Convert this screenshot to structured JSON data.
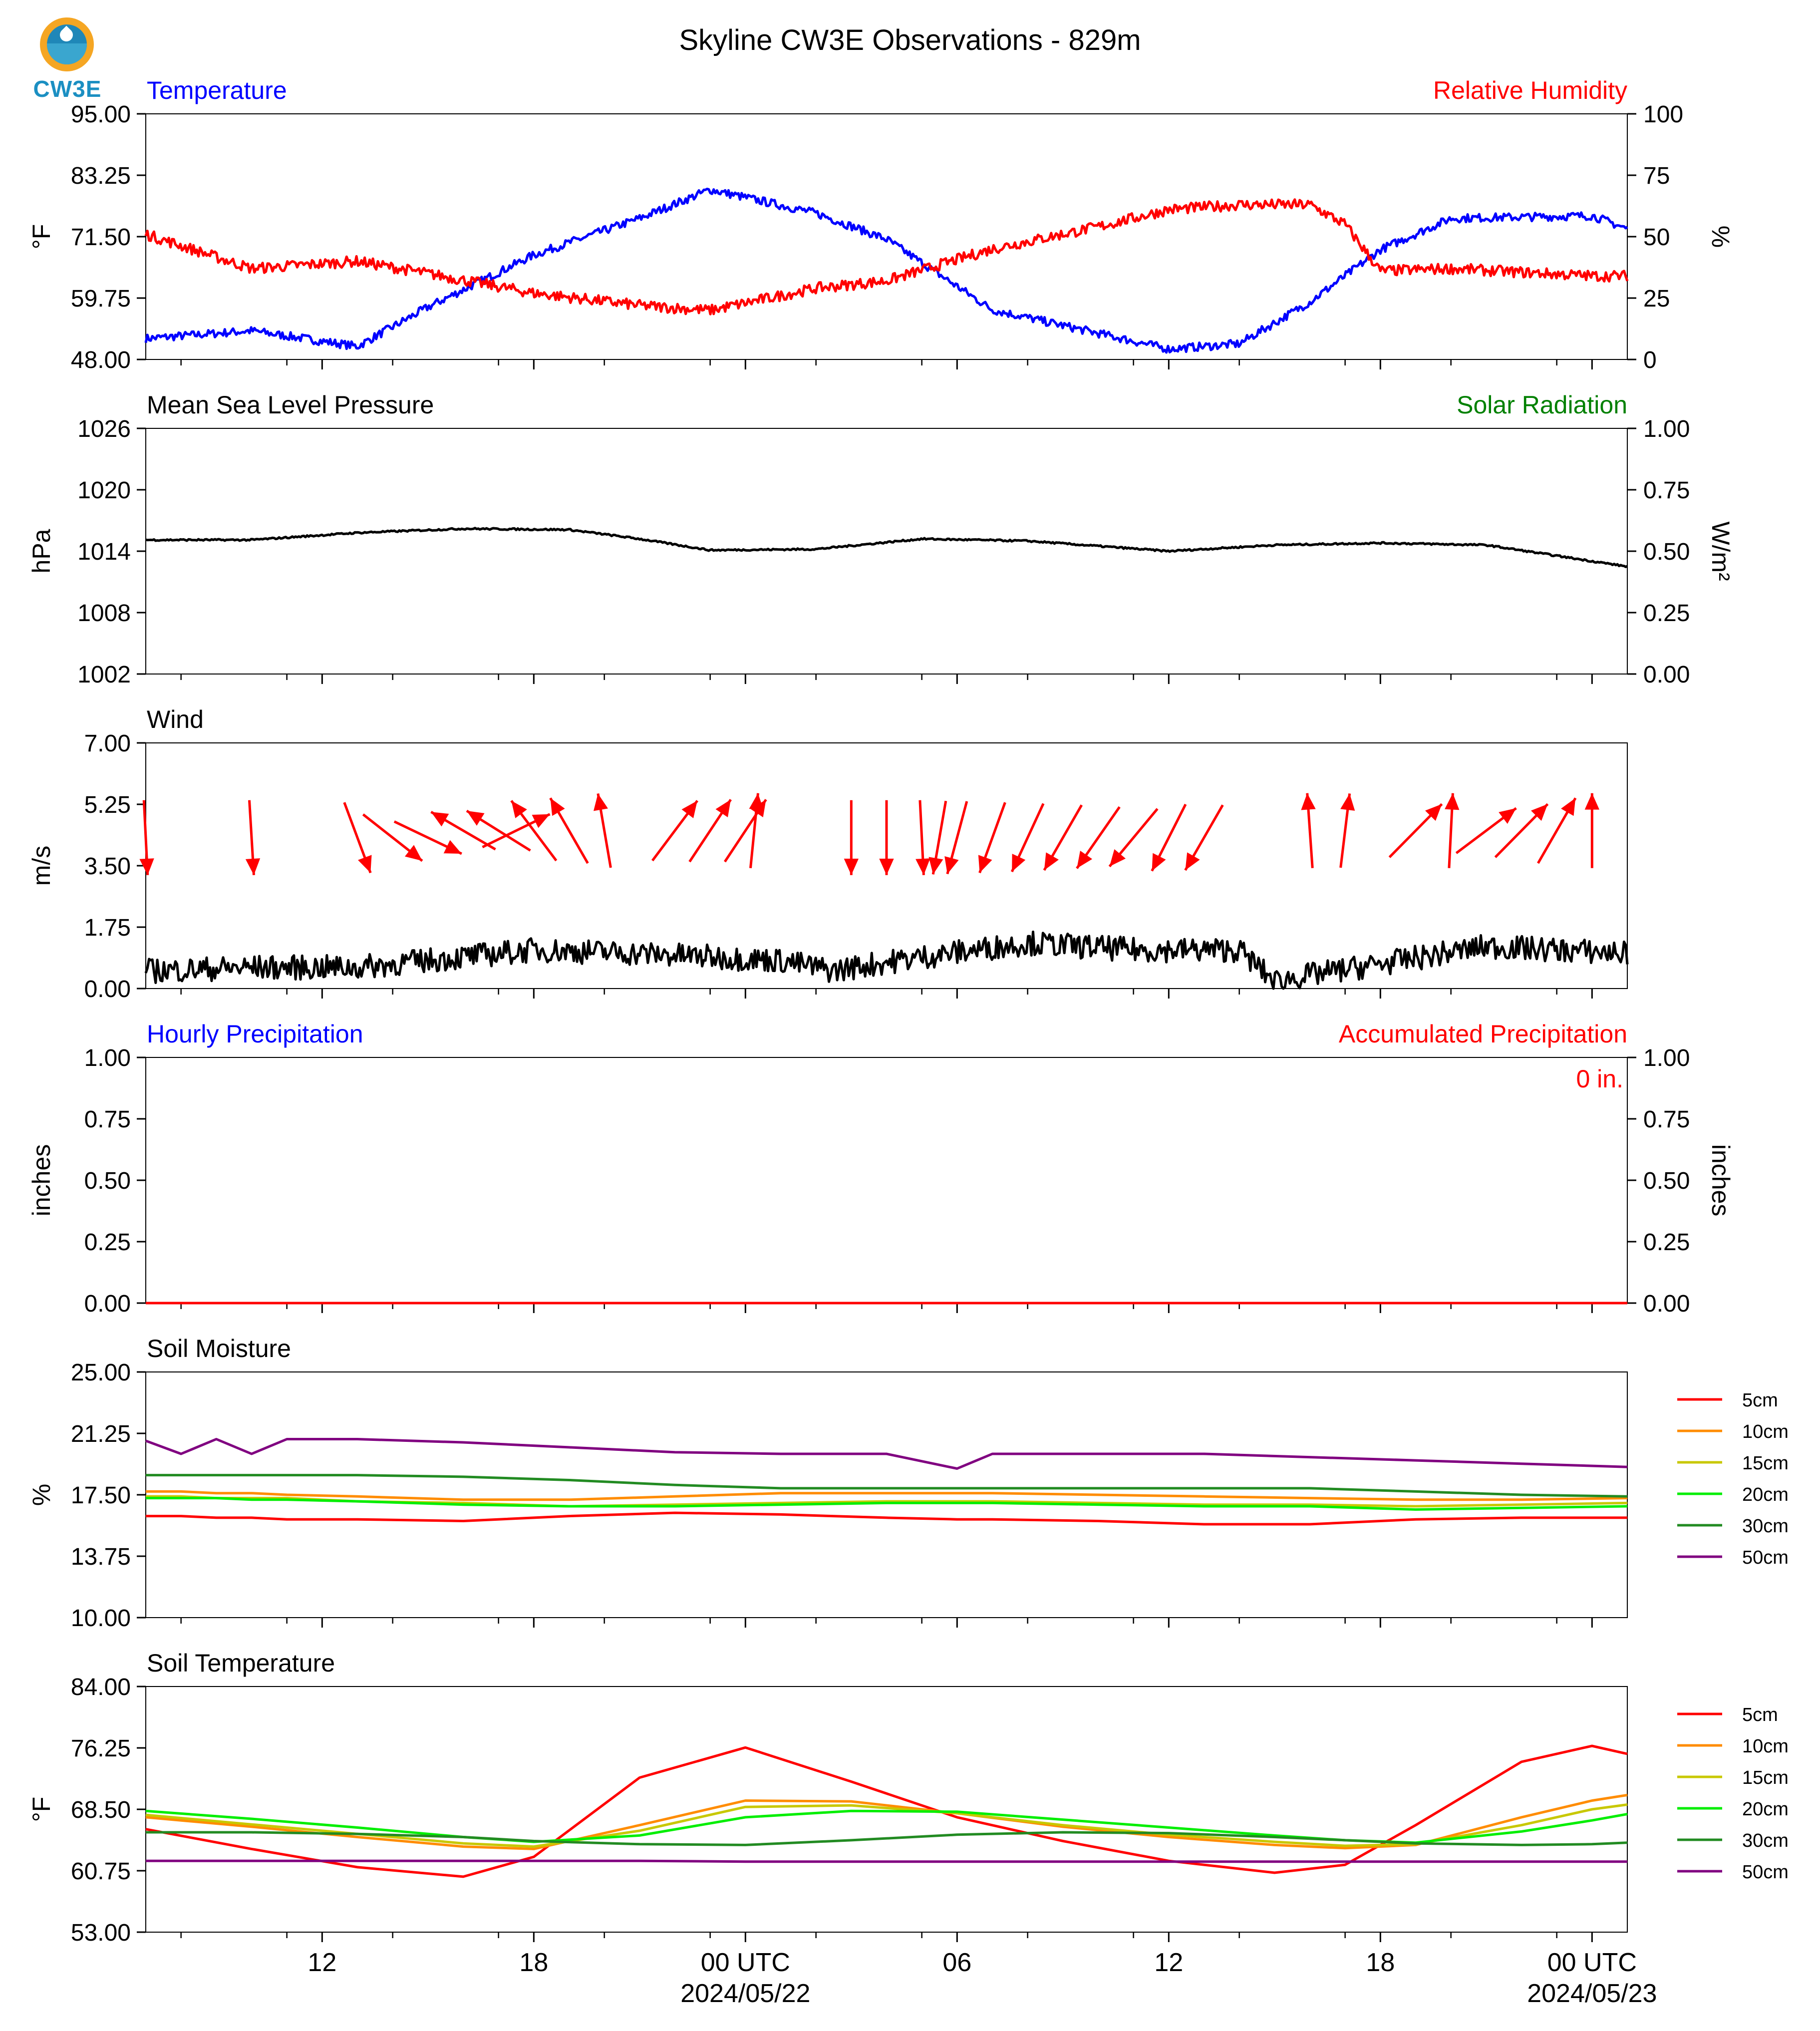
{
  "title": "Skyline CW3E Observations - 829m",
  "logo": {
    "text": "CW3E",
    "icon": "cw3e-logo-icon",
    "colors": {
      "ring": "#f5a623",
      "water": "#1f87b8"
    }
  },
  "colors": {
    "blue": "#0000ff",
    "red": "#ff0000",
    "green": "#008000",
    "black": "#000000"
  },
  "x_axis": {
    "tick_labels": [
      "12",
      "18",
      "00 UTC",
      "06",
      "12",
      "18",
      "00 UTC"
    ],
    "date_labels": [
      "2024/05/22",
      "2024/05/23"
    ]
  },
  "chart_data": [
    {
      "type": "line",
      "panel": "temperature-rh",
      "title_left": "Temperature",
      "title_right": "Relative Humidity",
      "ylabel_left": "°F",
      "ylabel_right": "%",
      "ylim_left": [
        48.0,
        95.0
      ],
      "ylim_right": [
        0,
        100
      ],
      "yticks_left": [
        "48.00",
        "59.75",
        "71.50",
        "83.25",
        "95.00"
      ],
      "yticks_right": [
        "0",
        "25",
        "50",
        "75",
        "100"
      ],
      "x": [
        "2024-05-21 07:00",
        "2024-05-21 10:00",
        "2024-05-21 13:00",
        "2024-05-21 15:00",
        "2024-05-21 18:00",
        "2024-05-21 21:00",
        "2024-05-21 23:00",
        "2024-05-22 02:00",
        "2024-05-22 04:00",
        "2024-05-22 07:00",
        "2024-05-22 10:00",
        "2024-05-22 12:00",
        "2024-05-22 14:00",
        "2024-05-22 16:00",
        "2024-05-22 17:00",
        "2024-05-22 18:00",
        "2024-05-22 20:00",
        "2024-05-23 00:00",
        "2024-05-23 01:00"
      ],
      "series": [
        {
          "name": "Temperature",
          "axis": "left",
          "color": "#0000ff",
          "values": [
            52.0,
            53.5,
            50.5,
            58.0,
            68.0,
            75.0,
            80.5,
            76.0,
            71.0,
            57.5,
            53.0,
            50.0,
            51.0,
            59.0,
            64.0,
            69.0,
            75.0,
            75.5,
            73.0
          ]
        },
        {
          "name": "Relative Humidity",
          "axis": "right",
          "color": "#ff0000",
          "values": [
            51,
            37,
            40,
            35,
            27,
            22,
            20,
            29,
            32,
            45,
            54,
            61,
            63,
            63,
            55,
            36,
            37,
            34,
            34
          ]
        }
      ]
    },
    {
      "type": "line",
      "panel": "pressure-solar",
      "title_left": "Mean Sea Level Pressure",
      "title_right": "Solar Radiation",
      "ylabel_left": "hPa",
      "ylabel_right": "W/m²",
      "ylim_left": [
        1002,
        1026
      ],
      "ylim_right": [
        0.0,
        1.0
      ],
      "yticks_left": [
        "1002",
        "1008",
        "1014",
        "1020",
        "1026"
      ],
      "yticks_right": [
        "0.00",
        "0.25",
        "0.50",
        "0.75",
        "1.00"
      ],
      "x": [
        "2024-05-21 07:00",
        "2024-05-21 10:00",
        "2024-05-21 13:00",
        "2024-05-21 16:00",
        "2024-05-21 19:00",
        "2024-05-21 21:00",
        "2024-05-21 23:00",
        "2024-05-22 02:00",
        "2024-05-22 05:00",
        "2024-05-22 08:00",
        "2024-05-22 12:00",
        "2024-05-22 15:00",
        "2024-05-22 18:00",
        "2024-05-22 21:00",
        "2024-05-23 01:00"
      ],
      "series": [
        {
          "name": "Mean Sea Level Pressure",
          "axis": "left",
          "color": "#000000",
          "values": [
            1015.1,
            1015.1,
            1015.8,
            1016.2,
            1016.1,
            1015.2,
            1014.1,
            1014.2,
            1015.2,
            1015.0,
            1014.0,
            1014.6,
            1014.8,
            1014.6,
            1012.5
          ]
        }
      ]
    },
    {
      "type": "line",
      "panel": "wind",
      "title_left": "Wind",
      "ylabel_left": "m/s",
      "ylim_left": [
        0.0,
        7.0
      ],
      "yticks_left": [
        "0.00",
        "1.75",
        "3.50",
        "5.25",
        "7.00"
      ],
      "x": [
        "2024-05-21 07:00",
        "2024-05-21 10:00",
        "2024-05-21 13:00",
        "2024-05-21 16:00",
        "2024-05-21 18:00",
        "2024-05-21 21:00",
        "2024-05-21 23:00",
        "2024-05-22 01:00",
        "2024-05-22 02:30",
        "2024-05-22 03:00",
        "2024-05-22 05:00",
        "2024-05-22 08:00",
        "2024-05-22 11:00",
        "2024-05-22 14:00",
        "2024-05-22 15:00",
        "2024-05-22 15:30",
        "2024-05-22 18:00",
        "2024-05-22 21:00",
        "2024-05-23 01:00"
      ],
      "series": [
        {
          "name": "Wind Speed",
          "axis": "left",
          "color": "#000000",
          "values": [
            0.5,
            0.6,
            0.6,
            0.9,
            1.1,
            1.0,
            0.9,
            0.8,
            0.5,
            0.6,
            0.9,
            1.3,
            1.1,
            1.1,
            0.2,
            0.3,
            0.7,
            1.2,
            1.0
          ]
        }
      ],
      "arrows": [
        {
          "x": "2024-05-21 07:00",
          "u": 0.05,
          "v": -1.0
        },
        {
          "x": "2024-05-21 10:00",
          "u": 0.06,
          "v": -1.0
        },
        {
          "x": "2024-05-21 13:00",
          "u": 0.35,
          "v": -0.94
        },
        {
          "x": "2024-05-21 14:00",
          "u": 0.79,
          "v": -0.62
        },
        {
          "x": "2024-05-21 15:00",
          "u": 0.9,
          "v": -0.43
        },
        {
          "x": "2024-05-21 16:00",
          "u": -0.86,
          "v": 0.5
        },
        {
          "x": "2024-05-21 17:00",
          "u": -0.85,
          "v": 0.53
        },
        {
          "x": "2024-05-21 17:30",
          "u": 0.9,
          "v": 0.44
        },
        {
          "x": "2024-05-21 18:00",
          "u": -0.6,
          "v": 0.8
        },
        {
          "x": "2024-05-21 19:00",
          "u": -0.5,
          "v": 0.87
        },
        {
          "x": "2024-05-21 20:00",
          "u": -0.17,
          "v": 0.99
        },
        {
          "x": "2024-05-21 22:00",
          "u": 0.6,
          "v": 0.8
        },
        {
          "x": "2024-05-21 23:00",
          "u": 0.55,
          "v": 0.83
        },
        {
          "x": "2024-05-22 00:00",
          "u": 0.55,
          "v": 0.83
        },
        {
          "x": "2024-05-22 00:15",
          "u": 0.1,
          "v": 1.0
        },
        {
          "x": "2024-05-22 03:00",
          "u": 0.0,
          "v": -1.0
        },
        {
          "x": "2024-05-22 04:00",
          "u": 0.0,
          "v": -1.0
        },
        {
          "x": "2024-05-22 05:00",
          "u": 0.05,
          "v": -1.0
        },
        {
          "x": "2024-05-22 05:30",
          "u": -0.17,
          "v": -0.98
        },
        {
          "x": "2024-05-22 06:00",
          "u": -0.26,
          "v": -0.97
        },
        {
          "x": "2024-05-22 07:00",
          "u": -0.34,
          "v": -0.94
        },
        {
          "x": "2024-05-22 08:00",
          "u": -0.42,
          "v": -0.91
        },
        {
          "x": "2024-05-22 09:00",
          "u": -0.5,
          "v": -0.87
        },
        {
          "x": "2024-05-22 10:00",
          "u": -0.57,
          "v": -0.82
        },
        {
          "x": "2024-05-22 11:00",
          "u": -0.64,
          "v": -0.77
        },
        {
          "x": "2024-05-22 12:00",
          "u": -0.45,
          "v": -0.89
        },
        {
          "x": "2024-05-22 13:00",
          "u": -0.5,
          "v": -0.87
        },
        {
          "x": "2024-05-22 16:00",
          "u": -0.07,
          "v": 1.0
        },
        {
          "x": "2024-05-22 17:00",
          "u": 0.12,
          "v": 0.99
        },
        {
          "x": "2024-05-22 19:00",
          "u": 0.7,
          "v": 0.71
        },
        {
          "x": "2024-05-22 20:00",
          "u": 0.05,
          "v": 1.0
        },
        {
          "x": "2024-05-22 21:00",
          "u": 0.8,
          "v": 0.6
        },
        {
          "x": "2024-05-22 22:00",
          "u": 0.7,
          "v": 0.71
        },
        {
          "x": "2024-05-22 23:00",
          "u": 0.5,
          "v": 0.87
        },
        {
          "x": "2024-05-23 00:00",
          "u": 0.0,
          "v": 1.0
        }
      ]
    },
    {
      "type": "line",
      "panel": "precipitation",
      "title_left": "Hourly Precipitation",
      "title_right": "Accumulated Precipitation",
      "annotation": "0 in.",
      "ylabel_left": "inches",
      "ylabel_right": "inches",
      "ylim_left": [
        0.0,
        1.0
      ],
      "ylim_right": [
        0.0,
        1.0
      ],
      "yticks_left": [
        "0.00",
        "0.25",
        "0.50",
        "0.75",
        "1.00"
      ],
      "yticks_right": [
        "0.00",
        "0.25",
        "0.50",
        "0.75",
        "1.00"
      ],
      "x": [
        "2024-05-21 07:00",
        "2024-05-23 01:00"
      ],
      "series": [
        {
          "name": "Accumulated Precipitation",
          "axis": "right",
          "color": "#ff0000",
          "values": [
            0,
            0
          ]
        }
      ]
    },
    {
      "type": "line",
      "panel": "soil-moisture",
      "title_left": "Soil Moisture",
      "ylabel_left": "%",
      "ylim_left": [
        10.0,
        25.0
      ],
      "yticks_left": [
        "10.00",
        "13.75",
        "17.50",
        "21.25",
        "25.00"
      ],
      "x": [
        "2024-05-21 07:00",
        "2024-05-21 08:00",
        "2024-05-21 09:00",
        "2024-05-21 10:00",
        "2024-05-21 11:00",
        "2024-05-21 13:00",
        "2024-05-21 16:00",
        "2024-05-21 19:00",
        "2024-05-21 22:00",
        "2024-05-22 01:00",
        "2024-05-22 04:00",
        "2024-05-22 06:00",
        "2024-05-22 07:00",
        "2024-05-22 10:00",
        "2024-05-22 13:00",
        "2024-05-22 16:00",
        "2024-05-22 19:00",
        "2024-05-22 22:00",
        "2024-05-23 01:00"
      ],
      "series": [
        {
          "name": "5cm",
          "color": "#ff0000",
          "values": [
            16.2,
            16.2,
            16.1,
            16.1,
            16.0,
            16.0,
            15.9,
            16.2,
            16.4,
            16.3,
            16.1,
            16.0,
            16.0,
            15.9,
            15.7,
            15.7,
            16.0,
            16.1,
            16.1
          ]
        },
        {
          "name": "10cm",
          "color": "#ff8c00",
          "values": [
            17.7,
            17.7,
            17.6,
            17.6,
            17.5,
            17.4,
            17.2,
            17.2,
            17.4,
            17.6,
            17.6,
            17.6,
            17.6,
            17.5,
            17.4,
            17.3,
            17.2,
            17.2,
            17.3
          ]
        },
        {
          "name": "15cm",
          "color": "#c8c800",
          "values": [
            17.4,
            17.4,
            17.3,
            17.3,
            17.3,
            17.1,
            17.0,
            16.8,
            16.9,
            17.0,
            17.1,
            17.1,
            17.1,
            17.0,
            16.9,
            16.9,
            16.8,
            16.9,
            17.0
          ]
        },
        {
          "name": "20cm",
          "color": "#00ee00",
          "values": [
            17.3,
            17.3,
            17.3,
            17.2,
            17.2,
            17.1,
            16.9,
            16.8,
            16.8,
            16.9,
            17.0,
            17.0,
            17.0,
            16.9,
            16.8,
            16.8,
            16.6,
            16.7,
            16.8
          ]
        },
        {
          "name": "30cm",
          "color": "#228b22",
          "values": [
            18.7,
            18.7,
            18.7,
            18.7,
            18.7,
            18.7,
            18.6,
            18.4,
            18.1,
            17.9,
            17.9,
            17.9,
            17.9,
            17.9,
            17.9,
            17.9,
            17.7,
            17.5,
            17.4
          ]
        },
        {
          "name": "50cm",
          "color": "#800080",
          "values": [
            20.8,
            20.0,
            20.9,
            20.0,
            20.9,
            20.9,
            20.7,
            20.4,
            20.1,
            20.0,
            20.0,
            19.1,
            20.0,
            20.0,
            20.0,
            19.8,
            19.6,
            19.4,
            19.2
          ]
        }
      ]
    },
    {
      "type": "line",
      "panel": "soil-temperature",
      "title_left": "Soil Temperature",
      "ylabel_left": "°F",
      "ylim_left": [
        53.0,
        84.0
      ],
      "yticks_left": [
        "53.00",
        "60.75",
        "68.50",
        "76.25",
        "84.00"
      ],
      "x": [
        "2024-05-21 07:00",
        "2024-05-21 10:00",
        "2024-05-21 13:00",
        "2024-05-21 16:00",
        "2024-05-21 18:00",
        "2024-05-21 21:00",
        "2024-05-22 00:00",
        "2024-05-22 03:00",
        "2024-05-22 06:00",
        "2024-05-22 09:00",
        "2024-05-22 12:00",
        "2024-05-22 15:00",
        "2024-05-22 17:00",
        "2024-05-22 19:00",
        "2024-05-22 22:00",
        "2024-05-23 00:00",
        "2024-05-23 01:00"
      ],
      "series": [
        {
          "name": "5cm",
          "color": "#ff0000",
          "values": [
            66.0,
            63.5,
            61.2,
            60.0,
            62.5,
            72.5,
            76.3,
            72.0,
            67.5,
            64.5,
            62.0,
            60.5,
            61.5,
            66.5,
            74.5,
            76.5,
            75.5
          ]
        },
        {
          "name": "10cm",
          "color": "#ff8c00",
          "values": [
            67.5,
            66.3,
            65.0,
            63.8,
            63.5,
            66.5,
            69.6,
            69.5,
            68.0,
            66.3,
            65.0,
            64.0,
            63.6,
            64.0,
            67.5,
            69.6,
            70.3
          ]
        },
        {
          "name": "15cm",
          "color": "#c8c800",
          "values": [
            67.8,
            66.6,
            65.4,
            64.2,
            63.8,
            65.8,
            68.8,
            69.0,
            68.0,
            66.5,
            65.3,
            64.4,
            63.9,
            64.1,
            66.5,
            68.5,
            69.1
          ]
        },
        {
          "name": "20cm",
          "color": "#00ee00",
          "values": [
            68.3,
            67.3,
            66.2,
            65.0,
            64.4,
            65.2,
            67.5,
            68.3,
            68.2,
            67.2,
            66.2,
            65.2,
            64.6,
            64.3,
            65.7,
            67.1,
            67.9
          ]
        },
        {
          "name": "30cm",
          "color": "#228b22",
          "values": [
            65.6,
            65.6,
            65.4,
            65.0,
            64.5,
            64.1,
            64.0,
            64.6,
            65.3,
            65.6,
            65.5,
            65.0,
            64.6,
            64.2,
            64.0,
            64.1,
            64.3
          ]
        },
        {
          "name": "50cm",
          "color": "#800080",
          "values": [
            62.0,
            62.0,
            62.0,
            62.0,
            62.0,
            62.0,
            61.9,
            61.9,
            61.9,
            61.9,
            61.9,
            61.9,
            61.9,
            61.9,
            61.9,
            61.9,
            61.9
          ]
        }
      ]
    }
  ]
}
